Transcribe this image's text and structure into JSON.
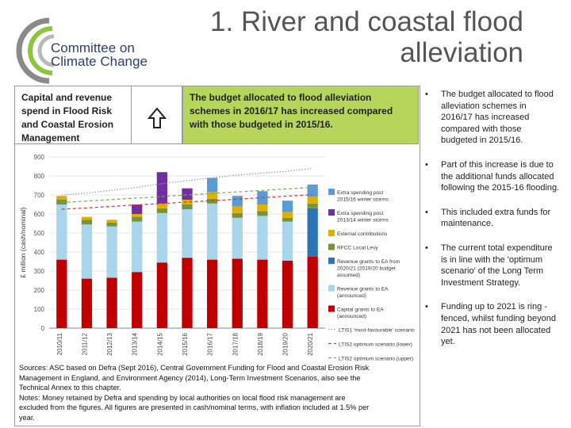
{
  "logo": {
    "line1": "Committee on",
    "line2": "Climate Change",
    "color_dark": "#2b3d73",
    "color_light": "#8cc63e"
  },
  "title": {
    "line1": "1. River and coastal flood",
    "line2": "alleviation"
  },
  "caption_box": {
    "text": "Capital and revenue spend in Flood Risk and Coastal Erosion Management"
  },
  "arrow_icon": "up-arrow-icon",
  "highlight_box": {
    "text": "The budget allocated to flood alleviation schemes in 2016/17 has increased compared with those budgeted in 2015/16.",
    "color": "#b5d65a"
  },
  "chart_data": {
    "type": "bar",
    "stacked": true,
    "ylabel": "£ million (cash/nominal)",
    "ylim": [
      0,
      900
    ],
    "yticks": [
      0,
      100,
      200,
      300,
      400,
      500,
      600,
      700,
      800,
      900
    ],
    "categories": [
      "2010/11",
      "2011/12",
      "2012/13",
      "2013/14",
      "2014/15",
      "2015/16",
      "2016/17",
      "2017/18",
      "2018/19",
      "2019/20",
      "2020/21"
    ],
    "series": [
      {
        "name": "Capital grants to EA (announced)",
        "color": "#c00000",
        "values": [
          360,
          260,
          265,
          295,
          345,
          370,
          360,
          365,
          360,
          355,
          375
        ]
      },
      {
        "name": "Revenue grants to EA (announced)",
        "color": "#a9d5ec",
        "values": [
          290,
          285,
          270,
          265,
          260,
          255,
          295,
          215,
          230,
          205,
          0
        ]
      },
      {
        "name": "Revenue grants to EA from 2020/21 (2019/20 budget assumed)",
        "color": "#2e74b5",
        "values": [
          0,
          0,
          0,
          0,
          0,
          0,
          0,
          0,
          0,
          0,
          255
        ]
      },
      {
        "name": "RFCC Local Levy",
        "color": "#76933c",
        "values": [
          25,
          25,
          20,
          25,
          25,
          25,
          25,
          25,
          25,
          20,
          25
        ]
      },
      {
        "name": "External contributions",
        "color": "#e0b000",
        "values": [
          20,
          15,
          15,
          15,
          25,
          25,
          35,
          35,
          35,
          30,
          35
        ]
      },
      {
        "name": "Extra spending post 2013/14 winter storms",
        "color": "#7030a0",
        "values": [
          0,
          0,
          0,
          50,
          165,
          60,
          0,
          0,
          0,
          0,
          0
        ]
      },
      {
        "name": "Extra spending post 2015/16 winter storms",
        "color": "#5b9bd5",
        "values": [
          0,
          0,
          0,
          0,
          0,
          0,
          75,
          55,
          70,
          60,
          65
        ]
      }
    ],
    "lines": [
      {
        "name": "LTIS1 'most-favourable' scenario",
        "style": "dotted",
        "color": "#9e9e9e",
        "values": [
          700,
          710,
          725,
          740,
          760,
          775,
          790,
          805,
          815,
          825,
          840
        ]
      },
      {
        "name": "LTIS2 optimum scenario (lower)",
        "style": "dashed",
        "color": "#e03030",
        "values": [
          625,
          632,
          640,
          648,
          655,
          663,
          670,
          678,
          686,
          694,
          702
        ]
      },
      {
        "name": "LTIS2 optimum scenario (upper)",
        "style": "dashed",
        "color": "#70ad47",
        "values": [
          660,
          668,
          676,
          684,
          692,
          700,
          708,
          716,
          724,
          732,
          740
        ]
      }
    ],
    "legend_position": "right"
  },
  "sources": {
    "l1": "Sources: ASC based on Defra (Sept 2016), Central Government Funding for Flood and Coastal Erosion Risk",
    "l2": "Management in England, and Environment Agency (2014), Long-Term Investment Scenarios, also see the",
    "l3": "Technical Annex to this chapter.",
    "l4": "Notes: Money retained by Defra and spending by local authorities on local flood risk management are",
    "l5": "excluded from the figures. All figures are presented in cash/nominal terms, with inflation included at 1.5% per",
    "l6": "year."
  },
  "bullets": [
    "The budget allocated to flood alleviation schemes in 2016/17 has increased compared with those budgeted in 2015/16.",
    "Part of this increase is due to the additional funds allocated following the 2015-16 flooding.",
    "This included extra funds for maintenance.",
    "The current total expenditure is in line with the 'optimum scenario' of the Long Term Investment Strategy.",
    "Funding up to 2021 is ring -fenced, whilst funding beyond 2021 has not been allocated yet."
  ]
}
